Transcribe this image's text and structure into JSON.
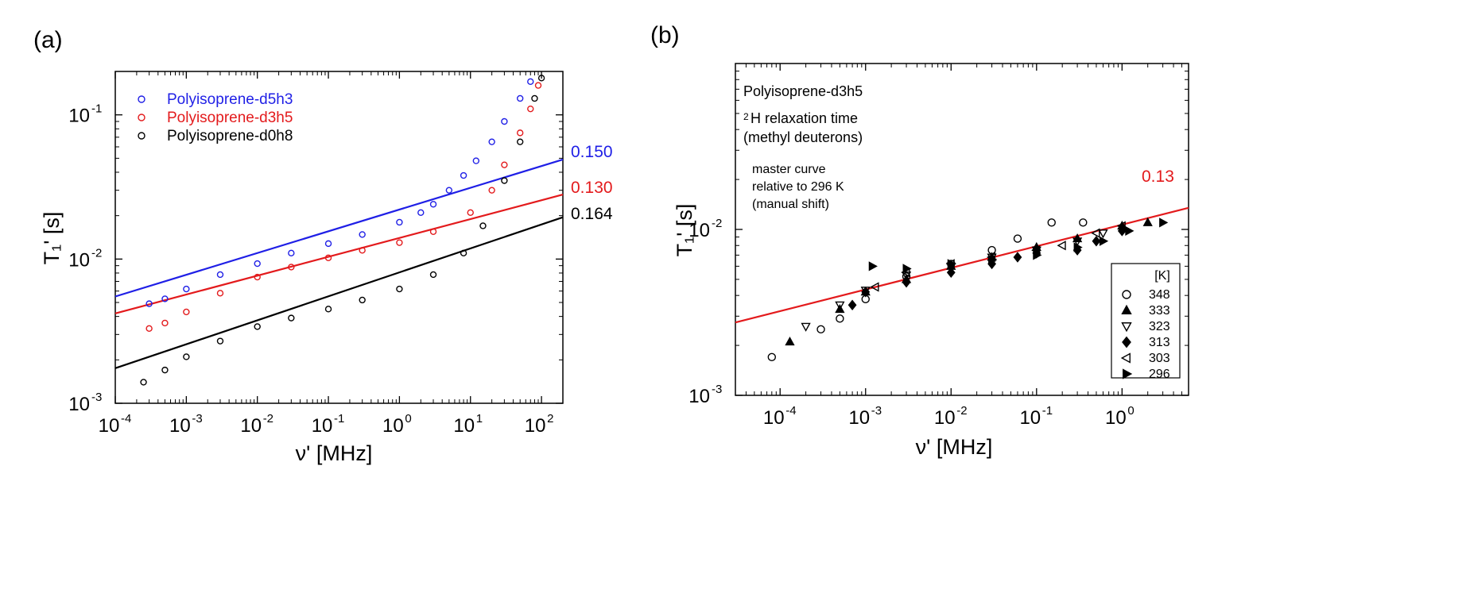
{
  "chart_data": [
    {
      "panel": "(a)",
      "type": "scatter",
      "xlabel": "ν' [MHz]",
      "ylabel": "T₁' [s]",
      "xscale": "log",
      "yscale": "log",
      "xlim": [
        0.0001,
        200
      ],
      "ylim": [
        0.001,
        0.2
      ],
      "x_ticks": [
        {
          "base": "10",
          "exp": "-4"
        },
        {
          "base": "10",
          "exp": "-3"
        },
        {
          "base": "10",
          "exp": "-2"
        },
        {
          "base": "10",
          "exp": "-1"
        },
        {
          "base": "10",
          "exp": "0"
        },
        {
          "base": "10",
          "exp": "1"
        },
        {
          "base": "10",
          "exp": "2"
        }
      ],
      "y_ticks": [
        {
          "base": "10",
          "exp": "-3"
        },
        {
          "base": "10",
          "exp": "-2"
        },
        {
          "base": "10",
          "exp": "-1"
        }
      ],
      "legend_position": "top-left",
      "series": [
        {
          "name": "Polyisoprene-d5h3",
          "color": "#1f1fe6",
          "points": [
            [
              0.0003,
              0.0049
            ],
            [
              0.0005,
              0.0053
            ],
            [
              0.001,
              0.0062
            ],
            [
              0.003,
              0.0078
            ],
            [
              0.01,
              0.0093
            ],
            [
              0.03,
              0.011
            ],
            [
              0.1,
              0.0128
            ],
            [
              0.3,
              0.0148
            ],
            [
              1,
              0.018
            ],
            [
              2,
              0.021
            ],
            [
              3,
              0.024
            ],
            [
              5,
              0.03
            ],
            [
              8,
              0.038
            ],
            [
              12,
              0.048
            ],
            [
              20,
              0.065
            ],
            [
              30,
              0.09
            ],
            [
              50,
              0.13
            ],
            [
              70,
              0.17
            ]
          ]
        },
        {
          "name": "Polyisoprene-d3h5",
          "color": "#e31a1c",
          "points": [
            [
              0.0003,
              0.0033
            ],
            [
              0.0005,
              0.0036
            ],
            [
              0.001,
              0.0043
            ],
            [
              0.003,
              0.0058
            ],
            [
              0.01,
              0.0075
            ],
            [
              0.03,
              0.0088
            ],
            [
              0.1,
              0.0102
            ],
            [
              0.3,
              0.0115
            ],
            [
              1,
              0.013
            ],
            [
              3,
              0.0155
            ],
            [
              10,
              0.021
            ],
            [
              20,
              0.03
            ],
            [
              30,
              0.045
            ],
            [
              50,
              0.075
            ],
            [
              70,
              0.11
            ],
            [
              90,
              0.16
            ]
          ]
        },
        {
          "name": "Polyisoprene-d0h8",
          "color": "#000000",
          "points": [
            [
              0.00025,
              0.0014
            ],
            [
              0.0005,
              0.0017
            ],
            [
              0.001,
              0.0021
            ],
            [
              0.003,
              0.0027
            ],
            [
              0.01,
              0.0034
            ],
            [
              0.03,
              0.0039
            ],
            [
              0.1,
              0.0045
            ],
            [
              0.3,
              0.0052
            ],
            [
              1,
              0.0062
            ],
            [
              3,
              0.0078
            ],
            [
              8,
              0.011
            ],
            [
              15,
              0.017
            ],
            [
              30,
              0.035
            ],
            [
              50,
              0.065
            ],
            [
              80,
              0.13
            ],
            [
              100,
              0.18
            ]
          ]
        }
      ],
      "fit_lines": [
        {
          "series": "Polyisoprene-d5h3",
          "label": "0.150",
          "color": "#1f1fe6",
          "x": [
            0.0001,
            200
          ],
          "y": [
            0.0055,
            0.049
          ]
        },
        {
          "series": "Polyisoprene-d3h5",
          "label": "0.130",
          "color": "#e31a1c",
          "x": [
            0.0001,
            200
          ],
          "y": [
            0.0042,
            0.028
          ]
        },
        {
          "series": "Polyisoprene-d0h8",
          "label": "0.164",
          "color": "#000000",
          "x": [
            0.0001,
            200
          ],
          "y": [
            0.00175,
            0.0195
          ]
        }
      ]
    },
    {
      "panel": "(b)",
      "type": "scatter",
      "xlabel": "ν' [MHz]",
      "ylabel": "T₁' [s]",
      "xscale": "log",
      "yscale": "log",
      "xlim": [
        3e-05,
        6
      ],
      "ylim": [
        0.001,
        0.1
      ],
      "x_ticks": [
        {
          "base": "10",
          "exp": "-4"
        },
        {
          "base": "10",
          "exp": "-3"
        },
        {
          "base": "10",
          "exp": "-2"
        },
        {
          "base": "10",
          "exp": "-1"
        },
        {
          "base": "10",
          "exp": "0"
        }
      ],
      "y_ticks": [
        {
          "base": "10",
          "exp": "-3"
        },
        {
          "base": "10",
          "exp": "-2"
        }
      ],
      "annotations": {
        "sample": "Polyisoprene-d3h5",
        "line2_sup": "2",
        "line2_rest": "H relaxation time",
        "line3": "(methyl deuterons)",
        "master1": "master curve",
        "master2": "relative to 296 K",
        "master3": "(manual shift)"
      },
      "sample_color": "#e31a1c",
      "legend_title": "[K]",
      "legend_position": "bottom-right",
      "series": [
        {
          "name": "348",
          "marker": "circle-open",
          "points": [
            [
              8e-05,
              0.0017
            ],
            [
              0.0003,
              0.0025
            ],
            [
              0.0005,
              0.0029
            ],
            [
              0.001,
              0.0038
            ],
            [
              0.003,
              0.0052
            ],
            [
              0.01,
              0.0062
            ],
            [
              0.03,
              0.0075
            ],
            [
              0.06,
              0.0088
            ],
            [
              0.15,
              0.011
            ],
            [
              0.35,
              0.011
            ]
          ]
        },
        {
          "name": "333",
          "marker": "triangle-up-filled",
          "points": [
            [
              0.00013,
              0.0021
            ],
            [
              0.0005,
              0.0033
            ],
            [
              0.001,
              0.0042
            ],
            [
              0.003,
              0.005
            ],
            [
              0.01,
              0.006
            ],
            [
              0.03,
              0.0068
            ],
            [
              0.1,
              0.0078
            ],
            [
              0.3,
              0.0088
            ],
            [
              1,
              0.0105
            ],
            [
              2,
              0.011
            ]
          ]
        },
        {
          "name": "323",
          "marker": "triangle-down-open",
          "points": [
            [
              0.0002,
              0.0026
            ],
            [
              0.0005,
              0.0035
            ],
            [
              0.001,
              0.0043
            ],
            [
              0.003,
              0.0053
            ],
            [
              0.01,
              0.006
            ],
            [
              0.03,
              0.0068
            ],
            [
              0.1,
              0.0075
            ],
            [
              0.3,
              0.0085
            ],
            [
              0.6,
              0.0095
            ]
          ]
        },
        {
          "name": "313",
          "marker": "diamond-filled",
          "points": [
            [
              0.0007,
              0.0035
            ],
            [
              0.001,
              0.0042
            ],
            [
              0.003,
              0.0048
            ],
            [
              0.01,
              0.0055
            ],
            [
              0.03,
              0.0062
            ],
            [
              0.06,
              0.0068
            ],
            [
              0.1,
              0.0072
            ],
            [
              0.3,
              0.0075
            ],
            [
              0.5,
              0.0085
            ],
            [
              1,
              0.0098
            ]
          ]
        },
        {
          "name": "303",
          "marker": "triangle-left-open",
          "points": [
            [
              0.0013,
              0.0045
            ],
            [
              0.003,
              0.0055
            ],
            [
              0.01,
              0.0062
            ],
            [
              0.03,
              0.0068
            ],
            [
              0.1,
              0.0075
            ],
            [
              0.2,
              0.008
            ],
            [
              0.5,
              0.0095
            ],
            [
              1,
              0.0105
            ]
          ]
        },
        {
          "name": "296",
          "marker": "triangle-right-filled",
          "points": [
            [
              0.0012,
              0.006
            ],
            [
              0.003,
              0.0058
            ],
            [
              0.01,
              0.0062
            ],
            [
              0.03,
              0.0066
            ],
            [
              0.1,
              0.007
            ],
            [
              0.3,
              0.0078
            ],
            [
              0.6,
              0.0085
            ],
            [
              1.2,
              0.0098
            ],
            [
              3,
              0.011
            ]
          ]
        }
      ],
      "fit_line": {
        "label": "0.13",
        "color": "#e31a1c",
        "x": [
          3e-05,
          6
        ],
        "y": [
          0.00275,
          0.0135
        ]
      }
    }
  ]
}
